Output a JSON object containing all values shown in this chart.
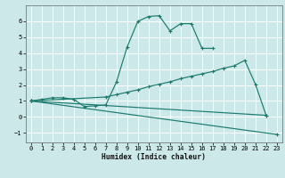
{
  "xlabel": "Humidex (Indice chaleur)",
  "xlim": [
    -0.5,
    23.5
  ],
  "ylim": [
    -1.6,
    7.0
  ],
  "xticks": [
    0,
    1,
    2,
    3,
    4,
    5,
    6,
    7,
    8,
    9,
    10,
    11,
    12,
    13,
    14,
    15,
    16,
    17,
    18,
    19,
    20,
    21,
    22,
    23
  ],
  "yticks": [
    -1,
    0,
    1,
    2,
    3,
    4,
    5,
    6
  ],
  "bg_color": "#cce8e8",
  "grid_color": "#ffffff",
  "line_color": "#1a7a6e",
  "line1_x": [
    0,
    1,
    2,
    3,
    4,
    5,
    6,
    7,
    8,
    9,
    10,
    11,
    12,
    13,
    14,
    15,
    16,
    17
  ],
  "line1_y": [
    1.0,
    1.1,
    1.2,
    1.2,
    1.1,
    0.65,
    0.7,
    0.75,
    2.2,
    4.4,
    6.0,
    6.3,
    6.35,
    5.4,
    5.85,
    5.85,
    4.3,
    4.3
  ],
  "line2_x": [
    0,
    7,
    8,
    9,
    10,
    11,
    12,
    13,
    14,
    15,
    16,
    17,
    18,
    19,
    20,
    21,
    22
  ],
  "line2_y": [
    1.0,
    1.25,
    1.4,
    1.55,
    1.7,
    1.9,
    2.05,
    2.2,
    2.4,
    2.55,
    2.7,
    2.85,
    3.05,
    3.2,
    3.55,
    2.05,
    0.1
  ],
  "line3_x": [
    0,
    22
  ],
  "line3_y": [
    1.0,
    0.1
  ],
  "line4_x": [
    0,
    23
  ],
  "line4_y": [
    1.0,
    -1.1
  ]
}
